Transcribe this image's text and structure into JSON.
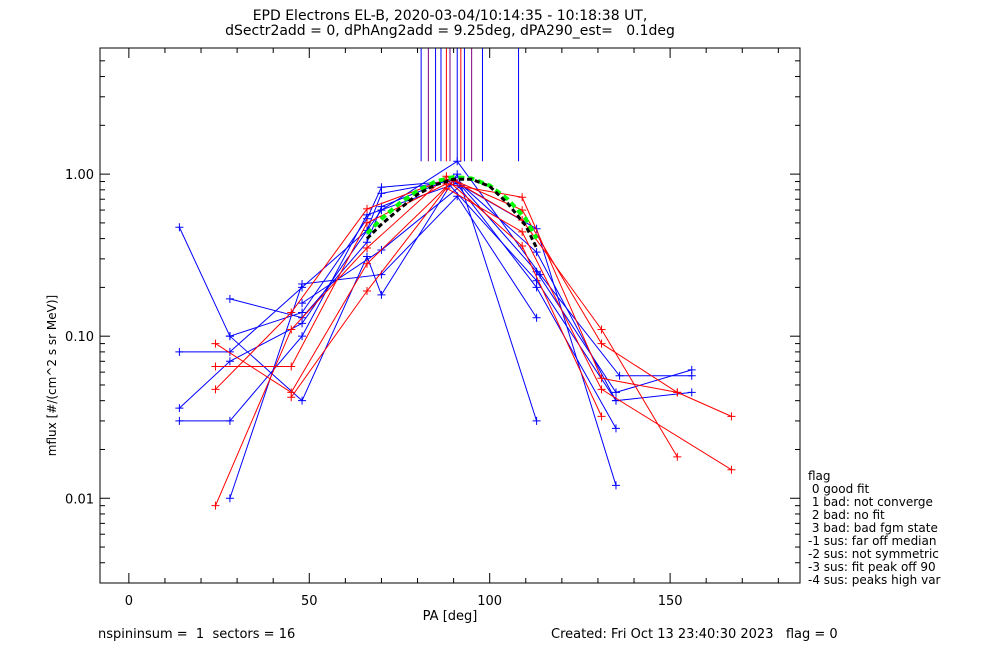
{
  "title_line1": "EPD Electrons EL-B, 2020-03-04/10:14:35 - 10:18:38 UT,",
  "title_line2": "dSectr2add = 0, dPhAng2add = 9.25deg, dPA290_est=   0.1deg",
  "footer": {
    "left": "nspininsum =  1  sectors = 16",
    "right": "Created: Fri Oct 13 23:40:30 2023   flag = 0"
  },
  "flag_legend": {
    "title": "flag",
    "items": [
      " 0 good fit",
      " 1 bad: not converge",
      " 2 bad: no fit",
      " 3 bad: bad fgm state",
      "-1 sus: far off median",
      "-2 sus: not symmetric",
      "-3 sus: fit peak off 90",
      "-4 sus: peaks high var"
    ]
  },
  "colors": {
    "blue": "#0000ff",
    "red": "#ff0000",
    "purple": "#800080",
    "fit": "#000000",
    "fit2": "#00ff00"
  },
  "chart_data": {
    "type": "line",
    "xlabel": "PA [deg]",
    "ylabel": "mflux [#/(cm^2 s sr MeV)]",
    "xlim": [
      -8,
      186
    ],
    "ylim": [
      0.003,
      6
    ],
    "ylog": true,
    "xticks": [
      0,
      50,
      100,
      150
    ],
    "yticks": [
      0.01,
      0.1,
      1.0
    ],
    "ytick_labels": [
      "0.01",
      "0.10",
      "1.00"
    ],
    "grid": false,
    "vertical_markers": [
      {
        "x": 81,
        "color": "blue"
      },
      {
        "x": 83,
        "color": "purple"
      },
      {
        "x": 85,
        "color": "blue"
      },
      {
        "x": 86.5,
        "color": "blue"
      },
      {
        "x": 88,
        "color": "red"
      },
      {
        "x": 89,
        "color": "purple"
      },
      {
        "x": 91,
        "color": "blue"
      },
      {
        "x": 92,
        "color": "red"
      },
      {
        "x": 93,
        "color": "blue"
      },
      {
        "x": 95,
        "color": "purple"
      },
      {
        "x": 98,
        "color": "blue"
      },
      {
        "x": 108,
        "color": "blue"
      }
    ],
    "series": [
      {
        "color": "blue",
        "x": [
          14,
          28,
          48,
          66,
          70,
          88,
          113,
          135
        ],
        "y": [
          0.47,
          0.1,
          0.14,
          0.53,
          0.83,
          0.9,
          0.22,
          0.04
        ]
      },
      {
        "color": "blue",
        "x": [
          14,
          28,
          48,
          66,
          70,
          90,
          113,
          135
        ],
        "y": [
          0.08,
          0.08,
          0.2,
          0.45,
          0.76,
          0.92,
          0.2,
          0.027
        ]
      },
      {
        "color": "blue",
        "x": [
          14,
          28,
          48,
          70,
          91,
          114,
          136,
          156
        ],
        "y": [
          0.036,
          0.07,
          0.12,
          0.6,
          1.2,
          0.24,
          0.057,
          0.057
        ]
      },
      {
        "color": "blue",
        "x": [
          14,
          28,
          48,
          66,
          91,
          113,
          135
        ],
        "y": [
          0.03,
          0.03,
          0.1,
          0.56,
          0.88,
          0.46,
          0.012
        ]
      },
      {
        "color": "blue",
        "x": [
          28,
          48,
          66,
          70,
          90,
          113,
          135,
          156
        ],
        "y": [
          0.17,
          0.13,
          0.38,
          0.63,
          0.95,
          0.33,
          0.04,
          0.045
        ]
      },
      {
        "color": "blue",
        "x": [
          28,
          48,
          70,
          91,
          113
        ],
        "y": [
          0.01,
          0.21,
          0.24,
          0.73,
          0.13
        ]
      },
      {
        "color": "blue",
        "x": [
          28,
          48,
          66,
          70,
          91,
          113
        ],
        "y": [
          0.1,
          0.04,
          0.31,
          0.18,
          1.0,
          0.03
        ]
      },
      {
        "color": "blue",
        "x": [
          48,
          70,
          92,
          113,
          135,
          156
        ],
        "y": [
          0.16,
          0.34,
          0.85,
          0.25,
          0.045,
          0.062
        ]
      },
      {
        "color": "red",
        "x": [
          24,
          45,
          66,
          88,
          109,
          131,
          152
        ],
        "y": [
          0.009,
          0.11,
          0.35,
          0.97,
          0.52,
          0.11,
          0.018
        ]
      },
      {
        "color": "red",
        "x": [
          24,
          45,
          66,
          88,
          109,
          131
        ],
        "y": [
          0.047,
          0.14,
          0.61,
          0.93,
          0.36,
          0.032
        ]
      },
      {
        "color": "red",
        "x": [
          24,
          45,
          66,
          88,
          109,
          131,
          152
        ],
        "y": [
          0.065,
          0.065,
          0.5,
          0.87,
          0.72,
          0.055,
          0.045
        ]
      },
      {
        "color": "red",
        "x": [
          24,
          45,
          66,
          90,
          109,
          131,
          152,
          167
        ],
        "y": [
          0.09,
          0.045,
          0.28,
          0.92,
          0.6,
          0.09,
          0.045,
          0.032
        ]
      },
      {
        "color": "red",
        "x": [
          45,
          66,
          88,
          109,
          131,
          167
        ],
        "y": [
          0.042,
          0.19,
          0.82,
          0.44,
          0.047,
          0.015
        ]
      }
    ],
    "fit_green": {
      "x": [
        66,
        70,
        75,
        80,
        85,
        90,
        95,
        100,
        105,
        110,
        113
      ],
      "y": [
        0.43,
        0.53,
        0.66,
        0.79,
        0.9,
        0.96,
        0.94,
        0.85,
        0.7,
        0.53,
        0.4
      ]
    },
    "fit_black": {
      "x": [
        66,
        70,
        75,
        80,
        85,
        90,
        95,
        100,
        105,
        110,
        113
      ],
      "y": [
        0.4,
        0.49,
        0.61,
        0.75,
        0.86,
        0.93,
        0.93,
        0.84,
        0.66,
        0.48,
        0.35
      ]
    }
  }
}
